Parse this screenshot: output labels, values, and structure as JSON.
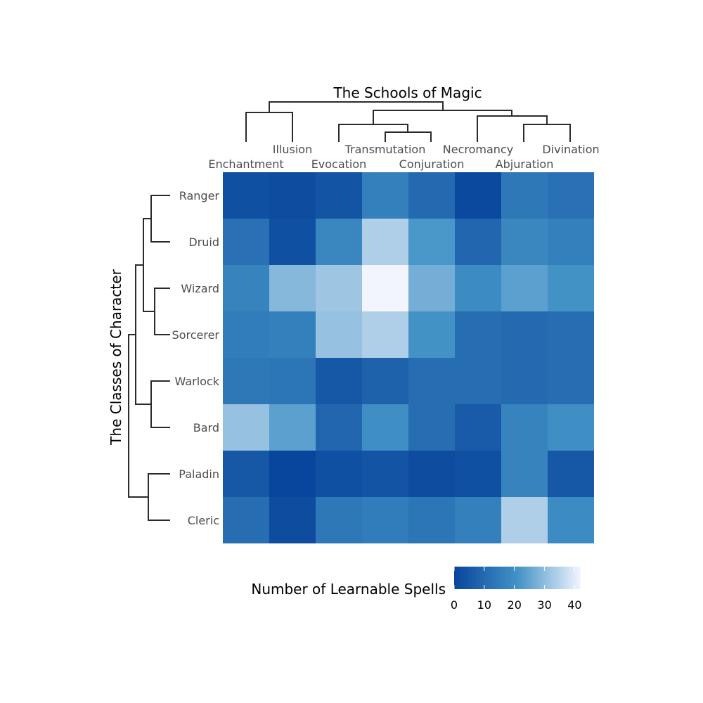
{
  "chart_data": {
    "type": "heatmap",
    "title": "",
    "xlabel": "The Schools of Magic",
    "ylabel": "The Classes of Character",
    "columns": [
      "Enchantment",
      "Illusion",
      "Evocation",
      "Transmutation",
      "Conjuration",
      "Necromancy",
      "Abjuration",
      "Divination"
    ],
    "rows": [
      "Ranger",
      "Druid",
      "Wizard",
      "Sorcerer",
      "Warlock",
      "Bard",
      "Paladin",
      "Cleric"
    ],
    "values": [
      [
        3,
        2,
        4,
        16,
        10,
        1,
        14,
        12
      ],
      [
        12,
        3,
        18,
        34,
        22,
        9,
        18,
        16
      ],
      [
        17,
        29,
        32,
        42,
        27,
        19,
        24,
        21
      ],
      [
        15,
        16,
        31,
        34,
        21,
        11,
        10,
        11
      ],
      [
        14,
        13,
        5,
        8,
        11,
        11,
        10,
        11
      ],
      [
        31,
        24,
        9,
        20,
        11,
        6,
        17,
        20
      ],
      [
        5,
        0,
        3,
        4,
        2,
        3,
        17,
        5
      ],
      [
        11,
        2,
        14,
        15,
        13,
        16,
        34,
        19
      ]
    ],
    "color_scale": {
      "title": "Number of Learnable Spells",
      "min": 0,
      "max": 42,
      "ticks": [
        0,
        10,
        20,
        30,
        40
      ],
      "low_color": "#08459c",
      "mid_color": "#4292c6",
      "high_color": "#f2f5fe"
    },
    "legend_position": "bottom",
    "grid": false
  }
}
